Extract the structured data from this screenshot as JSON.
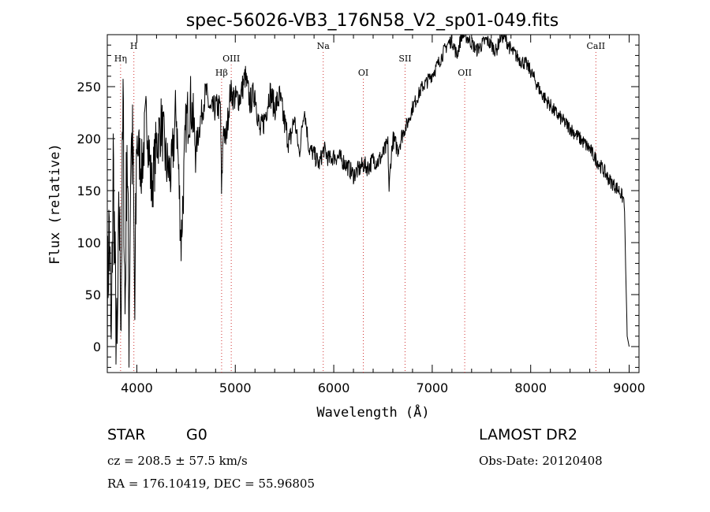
{
  "chart_data": {
    "type": "line",
    "title": "spec-56026-VB3_176N58_V2_sp01-049.fits",
    "xlabel": "Wavelength (Å)",
    "ylabel": "Flux (relative)",
    "xlim": [
      3700,
      9100
    ],
    "ylim": [
      -25,
      300
    ],
    "xticks": [
      4000,
      5000,
      6000,
      7000,
      8000,
      9000
    ],
    "yticks": [
      0,
      50,
      100,
      150,
      200,
      250
    ],
    "series": [
      {
        "name": "flux",
        "x": [
          3700,
          3720,
          3740,
          3760,
          3780,
          3800,
          3820,
          3840,
          3860,
          3880,
          3900,
          3920,
          3940,
          3960,
          3980,
          4000,
          4050,
          4100,
          4150,
          4200,
          4250,
          4300,
          4350,
          4400,
          4450,
          4500,
          4550,
          4600,
          4650,
          4700,
          4750,
          4800,
          4850,
          4860,
          4880,
          4900,
          4950,
          5000,
          5050,
          5100,
          5150,
          5200,
          5250,
          5300,
          5350,
          5400,
          5450,
          5500,
          5550,
          5600,
          5650,
          5700,
          5750,
          5800,
          5850,
          5900,
          5950,
          6000,
          6050,
          6100,
          6150,
          6200,
          6250,
          6300,
          6350,
          6400,
          6450,
          6500,
          6550,
          6562,
          6580,
          6600,
          6650,
          6700,
          6750,
          6800,
          6850,
          6900,
          6950,
          7000,
          7050,
          7100,
          7150,
          7200,
          7250,
          7300,
          7350,
          7400,
          7450,
          7500,
          7550,
          7600,
          7650,
          7700,
          7750,
          7800,
          7850,
          7900,
          7950,
          8000,
          8050,
          8100,
          8150,
          8200,
          8250,
          8300,
          8350,
          8400,
          8450,
          8500,
          8550,
          8600,
          8650,
          8700,
          8750,
          8800,
          8850,
          8900,
          8950,
          8980,
          9000
        ],
        "values": [
          40,
          120,
          -15,
          180,
          60,
          -20,
          130,
          40,
          230,
          30,
          210,
          20,
          200,
          180,
          25,
          200,
          170,
          225,
          150,
          195,
          215,
          175,
          165,
          230,
          100,
          215,
          235,
          190,
          220,
          245,
          225,
          230,
          230,
          145,
          215,
          195,
          245,
          238,
          240,
          260,
          235,
          245,
          205,
          220,
          245,
          230,
          240,
          215,
          195,
          220,
          185,
          230,
          190,
          185,
          175,
          190,
          180,
          183,
          182,
          178,
          172,
          165,
          170,
          175,
          172,
          180,
          178,
          185,
          195,
          150,
          180,
          200,
          190,
          205,
          215,
          230,
          240,
          250,
          255,
          262,
          270,
          280,
          290,
          295,
          280,
          300,
          298,
          292,
          285,
          290,
          295,
          290,
          284,
          300,
          295,
          285,
          280,
          275,
          272,
          265,
          255,
          245,
          238,
          232,
          225,
          220,
          215,
          210,
          205,
          200,
          195,
          190,
          182,
          175,
          168,
          160,
          155,
          150,
          140,
          10,
          0
        ]
      }
    ],
    "line_markers": [
      {
        "label": "Hη",
        "x": 3835,
        "row": 2
      },
      {
        "label": "H",
        "x": 3970,
        "row": 1
      },
      {
        "label": "Hβ",
        "x": 4861,
        "row": 3
      },
      {
        "label": "OIII",
        "x": 4959,
        "row": 2
      },
      {
        "label": "Na",
        "x": 5893,
        "row": 1
      },
      {
        "label": "OI",
        "x": 6300,
        "row": 3
      },
      {
        "label": "SII",
        "x": 6724,
        "row": 2
      },
      {
        "label": "OII",
        "x": 7330,
        "row": 3
      },
      {
        "label": "CaII",
        "x": 8662,
        "row": 1
      }
    ]
  },
  "footer": {
    "object_class": "STAR",
    "subclass": "G0",
    "survey": "LAMOST DR2",
    "cz": "cz = 208.5 ± 57.5 km/s",
    "obs_date": "Obs-Date: 20120408",
    "coords": "RA = 176.10419, DEC =  55.96805"
  },
  "colors": {
    "line": "#000000",
    "marker": "#d03030",
    "background": "#ffffff"
  }
}
